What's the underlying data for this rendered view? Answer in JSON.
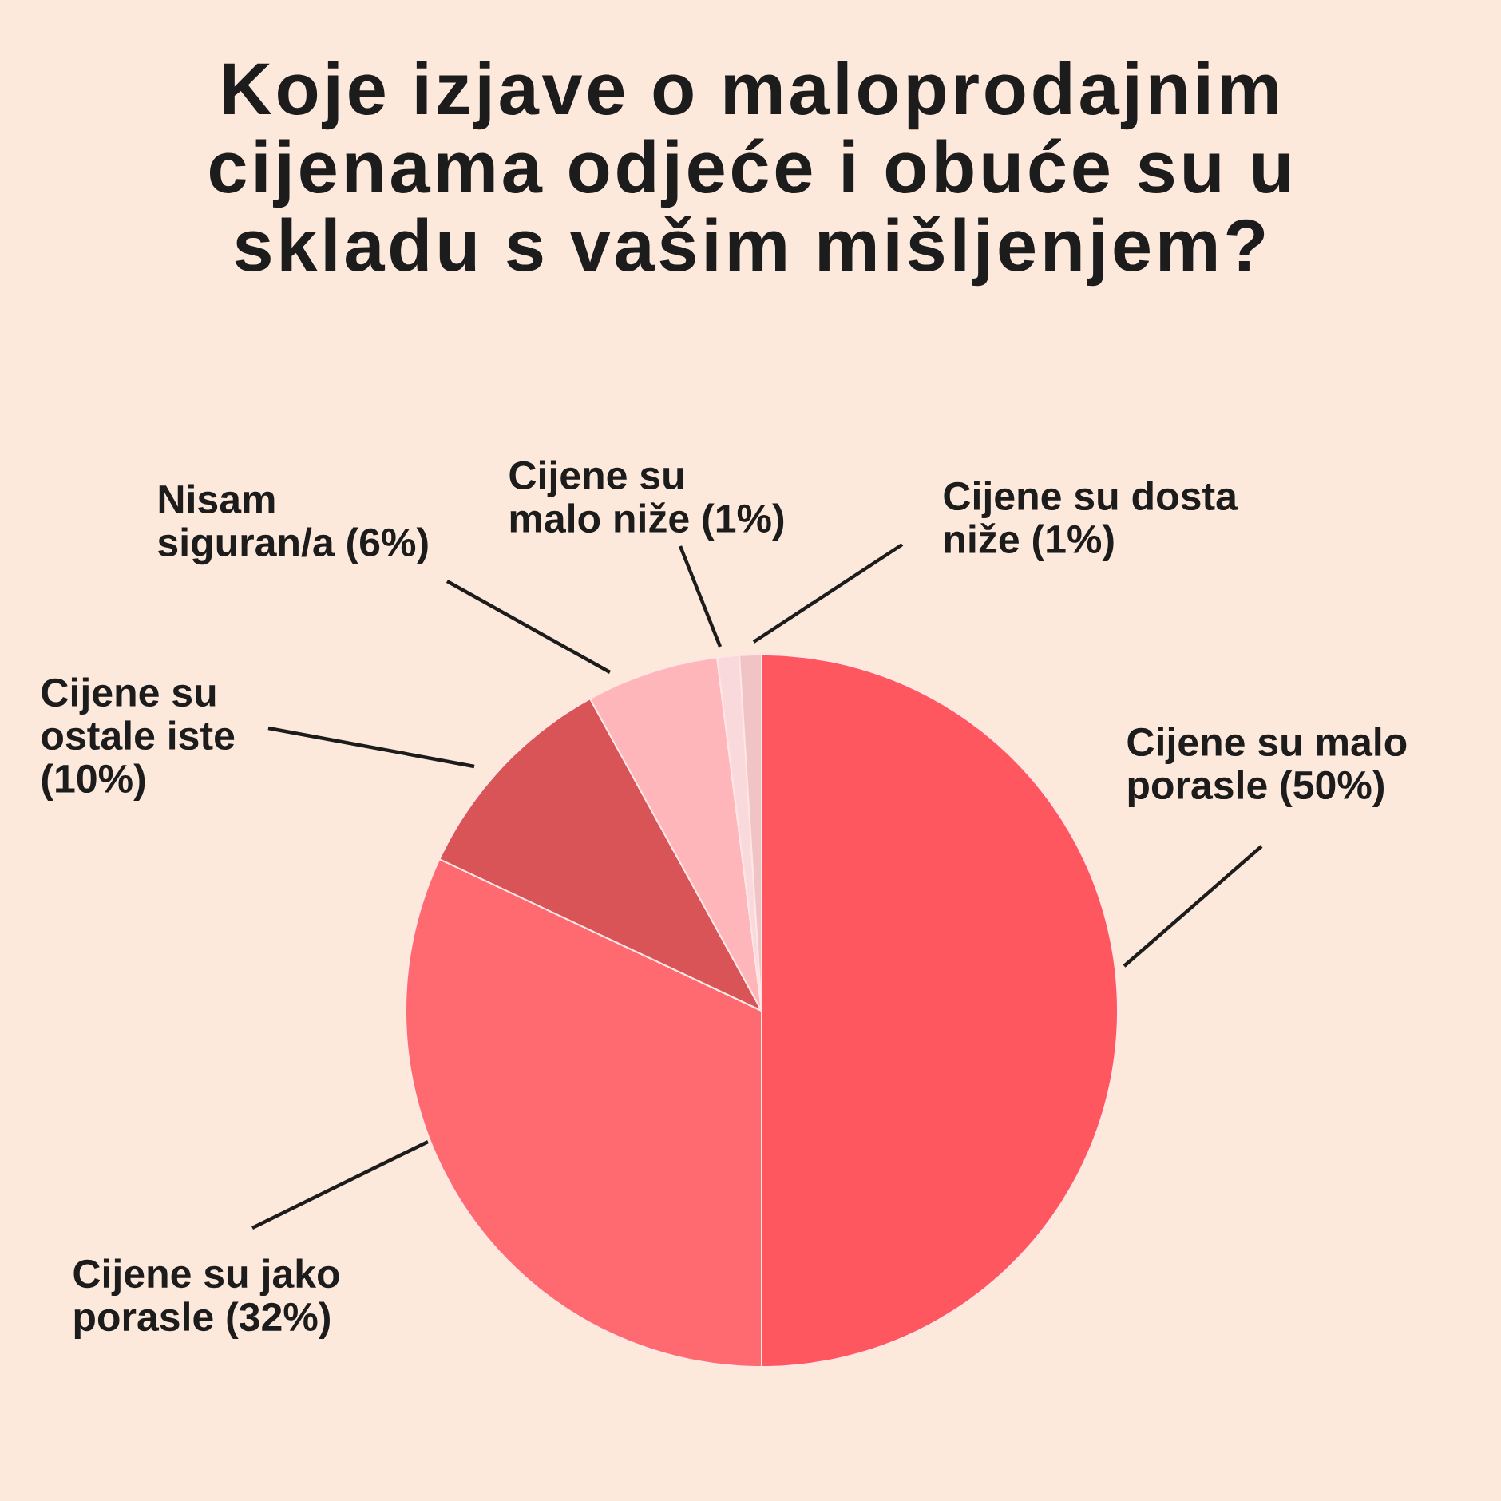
{
  "chart_data": {
    "type": "pie",
    "title": "Koje izjave o maloprodajnim cijenama odjeće i obuće su u skladu s vašim mišljenjem?",
    "categories": [
      "Cijene su malo porasle (50%)",
      "Cijene su jako porasle (32%)",
      "Cijene su ostale iste (10%)",
      "Nisam siguran/a (6%)",
      "Cijene su malo niže (1%)",
      "Cijene su dosta niže (1%)"
    ],
    "values": [
      50,
      32,
      10,
      6,
      1,
      1
    ],
    "colors": [
      "#ff5760",
      "#fe6a70",
      "#d95457",
      "#ffb6bb",
      "#fad9dd",
      "#f0c4c4"
    ]
  }
}
